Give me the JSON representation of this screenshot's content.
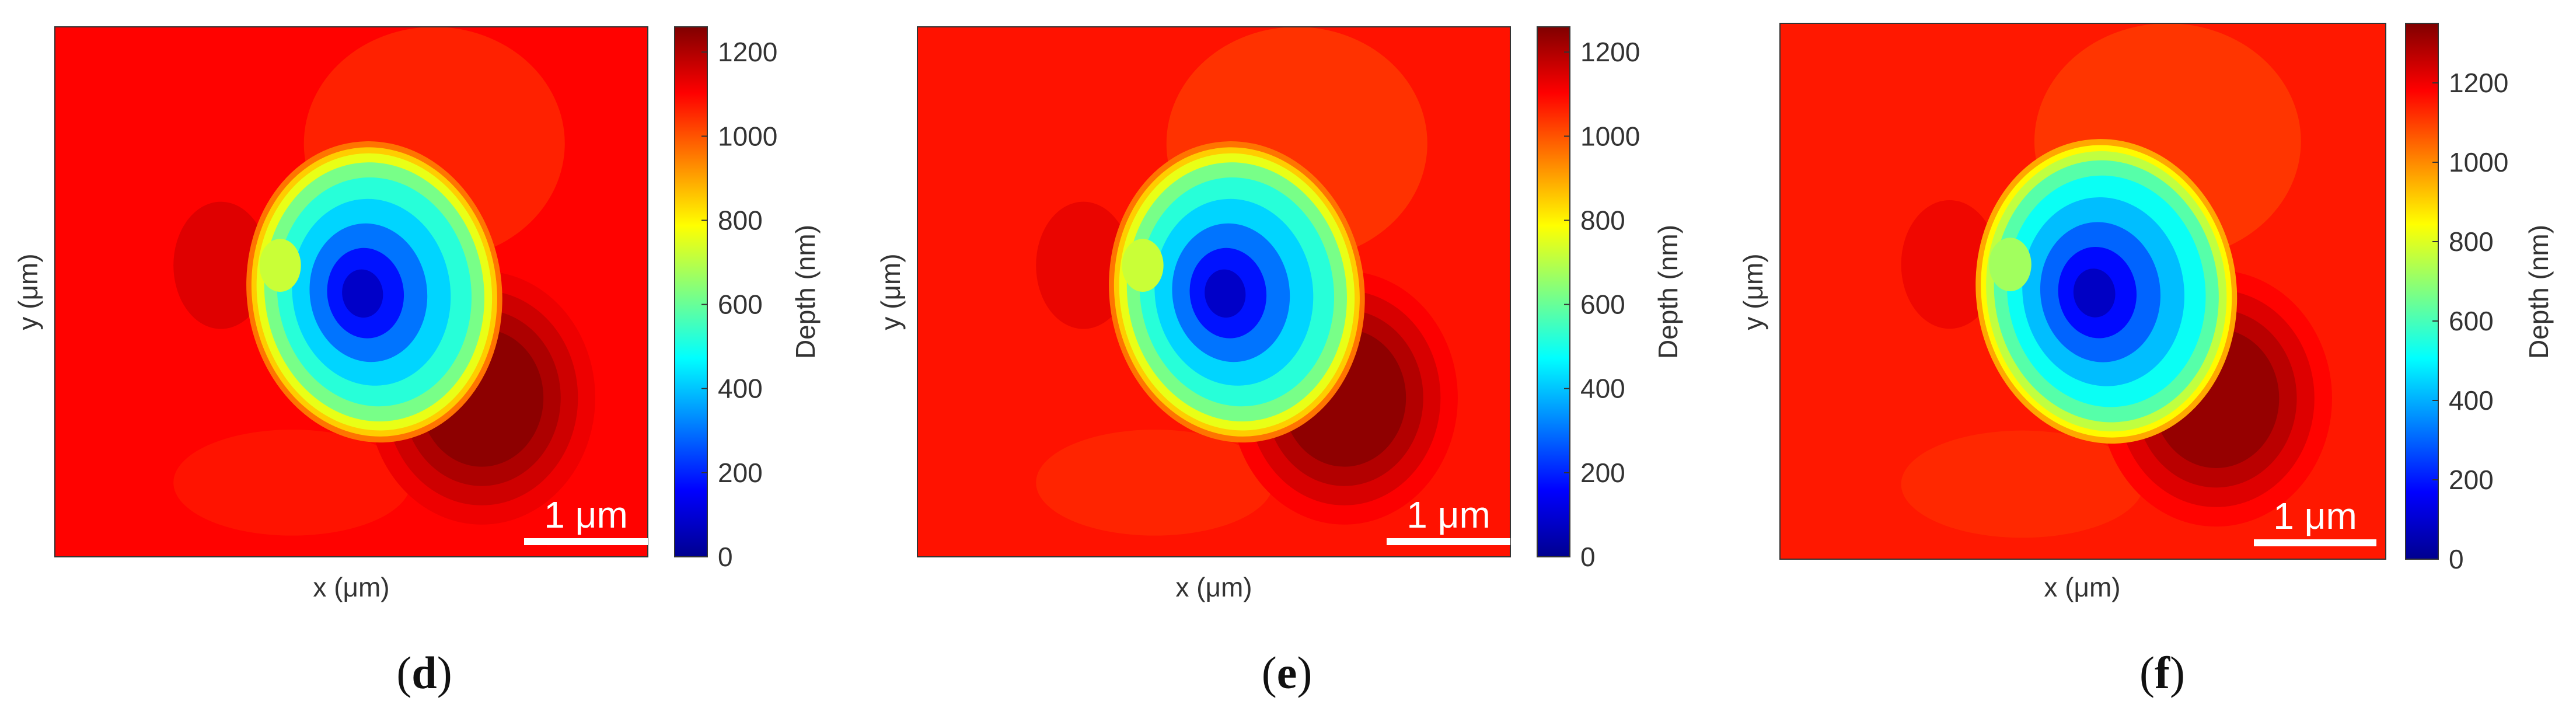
{
  "chart_data": [
    {
      "type": "heatmap",
      "panel_label": "d",
      "xlabel": "x (μm)",
      "ylabel": "y (μm)",
      "colorbar_label": "Depth (nm)",
      "colorbar_ticks": [
        0,
        200,
        400,
        600,
        800,
        1000,
        1200
      ],
      "colorbar_range": [
        0,
        1260
      ],
      "scale_bar": "1 μm",
      "background_depth_nm": 1100,
      "indent_min_depth_nm": 80,
      "pileup_max_depth_nm": 1260
    },
    {
      "type": "heatmap",
      "panel_label": "e",
      "xlabel": "x (μm)",
      "ylabel": "y (μm)",
      "colorbar_label": "Depth (nm)",
      "colorbar_ticks": [
        0,
        200,
        400,
        600,
        800,
        1000,
        1200
      ],
      "colorbar_range": [
        0,
        1260
      ],
      "scale_bar": "1 μm",
      "background_depth_nm": 1080,
      "indent_min_depth_nm": 80,
      "pileup_max_depth_nm": 1260
    },
    {
      "type": "heatmap",
      "panel_label": "f",
      "xlabel": "x (μm)",
      "ylabel": "y (μm)",
      "colorbar_label": "Depth (nm)",
      "colorbar_ticks": [
        0,
        200,
        400,
        600,
        800,
        1000,
        1200
      ],
      "colorbar_range": [
        0,
        1350
      ],
      "scale_bar": "1 μm",
      "background_depth_nm": 1150,
      "indent_min_depth_nm": 80,
      "pileup_max_depth_nm": 1340
    }
  ],
  "colormap": [
    "#00008f",
    "#0000ff",
    "#0080ff",
    "#00ffff",
    "#80ff80",
    "#ffff00",
    "#ff8000",
    "#ff0000",
    "#800000"
  ]
}
